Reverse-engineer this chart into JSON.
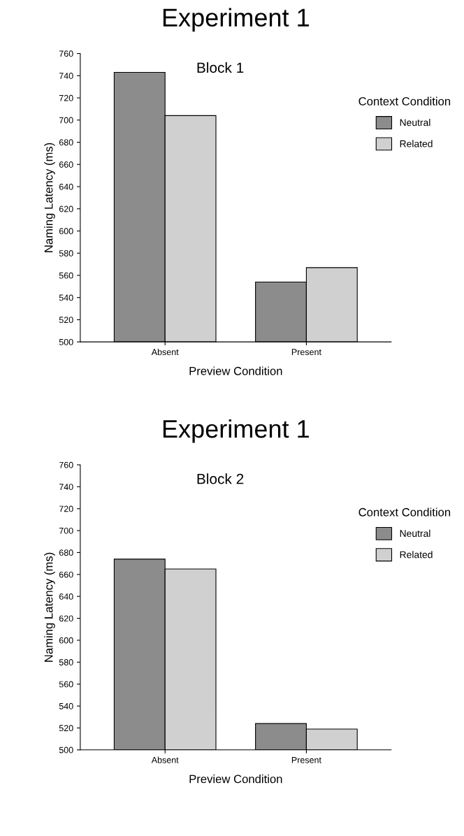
{
  "chart_data": [
    {
      "type": "bar",
      "title": "Experiment 1",
      "subtitle": "Block 1",
      "xlabel": "Preview Condition",
      "ylabel": "Naming Latency (ms)",
      "legend_title": "Context Condition",
      "categories": [
        "Absent",
        "Present"
      ],
      "series": [
        {
          "name": "Neutral",
          "color": "#8c8c8c",
          "values": [
            743,
            554
          ]
        },
        {
          "name": "Related",
          "color": "#d0d0d0",
          "values": [
            704,
            567
          ]
        }
      ],
      "ylim": [
        500,
        760
      ],
      "yticks": [
        500,
        520,
        540,
        560,
        580,
        600,
        620,
        640,
        660,
        680,
        700,
        720,
        740,
        760
      ],
      "grid": false,
      "legend": "right"
    },
    {
      "type": "bar",
      "title": "Experiment 1",
      "subtitle": "Block 2",
      "xlabel": "Preview Condition",
      "ylabel": "Naming Latency (ms)",
      "legend_title": "Context Condition",
      "categories": [
        "Absent",
        "Present"
      ],
      "series": [
        {
          "name": "Neutral",
          "color": "#8c8c8c",
          "values": [
            674,
            524
          ]
        },
        {
          "name": "Related",
          "color": "#d0d0d0",
          "values": [
            665,
            519
          ]
        }
      ],
      "ylim": [
        500,
        760
      ],
      "yticks": [
        500,
        520,
        540,
        560,
        580,
        600,
        620,
        640,
        660,
        680,
        700,
        720,
        740,
        760
      ],
      "grid": false,
      "legend": "right"
    }
  ]
}
